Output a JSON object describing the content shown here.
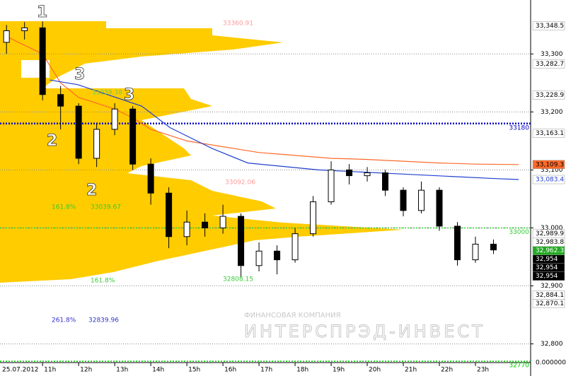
{
  "chart_data": {
    "type": "candlestick",
    "date": "25.07.2012",
    "xlim": [
      9.82,
      24.53
    ],
    "xticks": [
      {
        "value": 11,
        "label": "11h"
      },
      {
        "value": 12,
        "label": "12h"
      },
      {
        "value": 13,
        "label": "13h"
      },
      {
        "value": 14,
        "label": "14h"
      },
      {
        "value": 15,
        "label": "15h"
      },
      {
        "value": 16,
        "label": "16h"
      },
      {
        "value": 17,
        "label": "17h"
      },
      {
        "value": 18,
        "label": "18h"
      },
      {
        "value": 19,
        "label": "19h"
      },
      {
        "value": 20,
        "label": "20h"
      },
      {
        "value": 21,
        "label": "21h"
      },
      {
        "value": 22,
        "label": "22h"
      },
      {
        "value": 23,
        "label": "23h"
      }
    ],
    "ylim": [
      32769,
      33393
    ],
    "yticks": [
      {
        "value": 32800,
        "label": "32,800"
      },
      {
        "value": 32900,
        "label": "32,900"
      },
      {
        "value": 33000,
        "label": "33,000"
      },
      {
        "value": 33100,
        "label": "33,100"
      },
      {
        "value": 33200,
        "label": "33,200"
      },
      {
        "value": 33300,
        "label": "33,300"
      }
    ],
    "grid": true,
    "candles": {
      "x": [
        10,
        10.5,
        11,
        11.5,
        12,
        12.5,
        13,
        13.5,
        14,
        14.5,
        15,
        15.5,
        16,
        16.5,
        17,
        17.5,
        18,
        18.5,
        19,
        19.5,
        20,
        20.5,
        21,
        21.5,
        22,
        22.5,
        23,
        23.5
      ],
      "open": [
        33320,
        33340,
        33345,
        33230,
        33210,
        33120,
        33170,
        33205,
        33110,
        33060,
        32985,
        33010,
        33000,
        33020,
        32935,
        32960,
        32945,
        32990,
        33045,
        33100,
        33090,
        33095,
        33065,
        33030,
        33065,
        33003,
        32945,
        32972
      ],
      "high": [
        33350,
        33355,
        33356,
        33245,
        33215,
        33180,
        33215,
        33210,
        33120,
        33070,
        33030,
        33025,
        33040,
        33025,
        32975,
        32970,
        33000,
        33055,
        33115,
        33110,
        33105,
        33100,
        33070,
        33080,
        33070,
        33010,
        32985,
        32980
      ],
      "low": [
        33300,
        33325,
        33220,
        33170,
        33110,
        33105,
        33160,
        33100,
        33040,
        32965,
        32970,
        32985,
        32990,
        32915,
        32925,
        32920,
        32940,
        32985,
        33040,
        33075,
        33080,
        33055,
        33020,
        33025,
        32995,
        32935,
        32940,
        32955
      ],
      "close": [
        33340,
        33345,
        33230,
        33210,
        33120,
        33170,
        33205,
        33110,
        33060,
        32985,
        33010,
        33000,
        33020,
        32935,
        32960,
        32945,
        32990,
        33045,
        33100,
        33090,
        33095,
        33065,
        33030,
        33065,
        33003,
        32945,
        32972,
        32962
      ]
    },
    "series": [
      {
        "color": "#ff6a2a",
        "x": [
          10,
          11,
          11.5,
          12,
          12.5,
          13,
          13.5,
          14,
          14.5,
          15,
          15.5,
          16,
          16.5,
          17,
          18,
          19,
          20,
          21,
          22,
          23,
          24.2
        ],
        "values": [
          33330,
          33300,
          33250,
          33225,
          33215,
          33205,
          33190,
          33170,
          33160,
          33150,
          33145,
          33140,
          33135,
          33130,
          33125,
          33120,
          33118,
          33115,
          33112,
          33110,
          33109.3
        ]
      },
      {
        "color": "#1f3fcc",
        "x": [
          11.2,
          11.98,
          13.75,
          14.53,
          15.7,
          16.69,
          18.65,
          20.6,
          23.55,
          24.2
        ],
        "values": [
          33255,
          33247,
          33210,
          33173,
          33137,
          33112,
          33100,
          33094,
          33085,
          33083.4
        ]
      }
    ],
    "levels": [
      {
        "value": 33180,
        "color": "#0000c0"
      },
      {
        "value": 33000,
        "color": "#33cc33"
      },
      {
        "value": 32770,
        "color": "#00cc00"
      }
    ],
    "price_labels": [
      {
        "value": 33348.5,
        "label": "33,348.5",
        "bg": "#ffffff",
        "color": "#000000"
      },
      {
        "value": 33282.7,
        "label": "33,282.7",
        "bg": "#ffffff",
        "color": "#000000"
      },
      {
        "value": 33228.9,
        "label": "33,228.9",
        "bg": "#ffffff",
        "color": "#000000"
      },
      {
        "value": 33163.1,
        "label": "33,163.1",
        "bg": "#ffffff",
        "color": "#000000"
      },
      {
        "value": 33109.3,
        "label": "33,109.3",
        "bg": "#ff6a2a",
        "color": "#000000"
      },
      {
        "value": 33083.4,
        "label": "33,083.4",
        "bg": "#ffffff",
        "color": "#1f3fcc"
      },
      {
        "value": 32989.9,
        "label": "32,989.9",
        "bg": "#ffffff",
        "color": "#000000"
      },
      {
        "value": 32983.8,
        "label": "32,983.8",
        "bg": "#ffffff",
        "color": "#000000"
      },
      {
        "value": 32962.3,
        "label": "32,962.3",
        "bg": "#22aa22",
        "color": "#ffffff"
      },
      {
        "value": 32954,
        "label": "32,954",
        "bg": "#000000",
        "color": "#ffffff"
      },
      {
        "value": 32954,
        "label": "32,954",
        "bg": "#000000",
        "color": "#ffffff"
      },
      {
        "value": 32954,
        "label": "32,954",
        "bg": "#000000",
        "color": "#ffffff"
      },
      {
        "value": 32884.1,
        "label": "32,884.1",
        "bg": "#ffffff",
        "color": "#000000"
      },
      {
        "value": 32870.1,
        "label": "32,870.1",
        "bg": "#ffffff",
        "color": "#000000"
      }
    ],
    "bottom_value": "0.000000",
    "wave_labels": [
      "1",
      "2",
      "3",
      "3",
      "2"
    ],
    "fib_labels": [
      "33360.91",
      "33239.38",
      "33092.06",
      "161.8%",
      "33039.67",
      "161.8%",
      "32808.15",
      "261.8%",
      "32839.96"
    ],
    "watermark": [
      "ФИНАНСОВАЯ КОМПАНИЯ",
      "ИНТЕРСПРЭД-ИНВЕСТ"
    ]
  }
}
